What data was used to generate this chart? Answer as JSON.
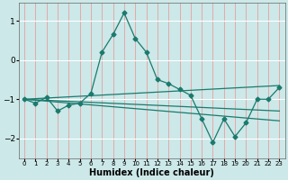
{
  "xlabel": "Humidex (Indice chaleur)",
  "background_color": "#cce8e8",
  "grid_color_v": "#e8a0a0",
  "grid_color_h": "#ffffff",
  "line_color": "#1a7a6e",
  "xlim": [
    -0.5,
    23.5
  ],
  "ylim": [
    -2.5,
    1.45
  ],
  "yticks": [
    -2,
    -1,
    0,
    1
  ],
  "xticks": [
    0,
    1,
    2,
    3,
    4,
    5,
    6,
    7,
    8,
    9,
    10,
    11,
    12,
    13,
    14,
    15,
    16,
    17,
    18,
    19,
    20,
    21,
    22,
    23
  ],
  "series": [
    {
      "x": [
        0,
        1,
        2,
        3,
        4,
        5,
        6,
        7,
        8,
        9,
        10,
        11,
        12,
        13,
        14,
        15,
        16,
        17,
        18,
        19,
        20,
        21,
        22,
        23
      ],
      "y": [
        -1.0,
        -1.1,
        -0.95,
        -1.3,
        -1.15,
        -1.1,
        -0.85,
        0.2,
        0.65,
        1.2,
        0.55,
        0.2,
        -0.5,
        -0.6,
        -0.75,
        -0.9,
        -1.5,
        -2.1,
        -1.5,
        -1.95,
        -1.6,
        -1.0,
        -1.0,
        -0.7
      ],
      "marker": "D",
      "markersize": 2.5
    },
    {
      "x": [
        0,
        23
      ],
      "y": [
        -1.0,
        -0.65
      ],
      "marker": null
    },
    {
      "x": [
        0,
        23
      ],
      "y": [
        -1.0,
        -1.3
      ],
      "marker": null
    },
    {
      "x": [
        0,
        23
      ],
      "y": [
        -1.0,
        -1.55
      ],
      "marker": null
    }
  ]
}
